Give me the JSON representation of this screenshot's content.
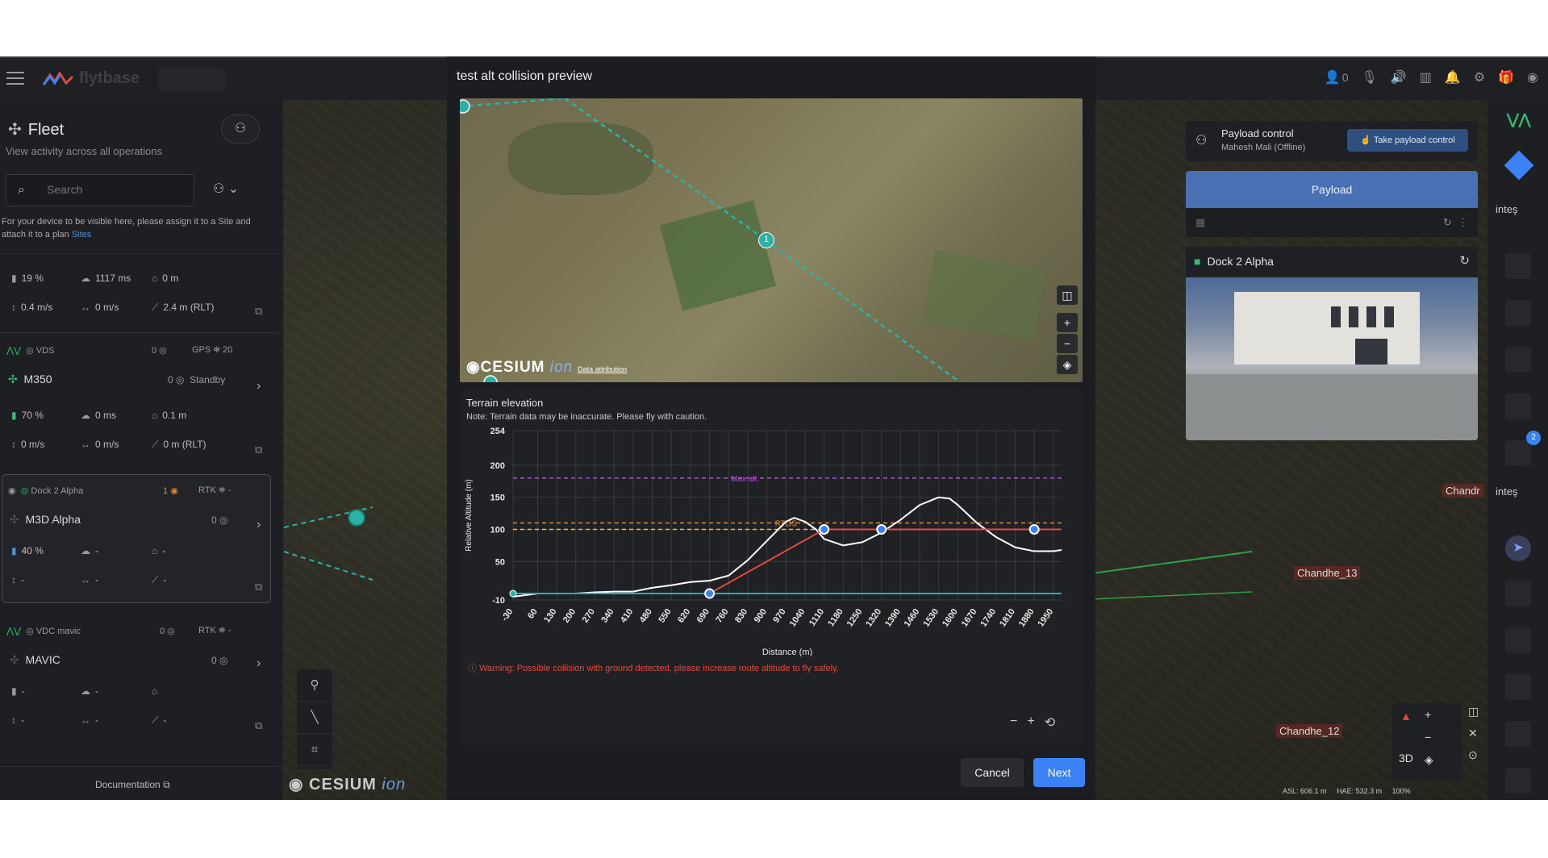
{
  "topbar": {
    "brand": "flytbase",
    "users_count": "0"
  },
  "sidebar": {
    "title": "Fleet",
    "subtitle": "View activity across all operations",
    "search_placeholder": "Search",
    "note": "For your device to be visible here, please assign it to a Site and attach it to a plan",
    "note_link": "Sites",
    "documentation": "Documentation",
    "device0": {
      "battery": "19 %",
      "latency": "1117 ms",
      "home": "0 m",
      "vspeed": "0.4 m/s",
      "hspeed": "0 m/s",
      "alt": "2.4 m (RLT)"
    },
    "device1": {
      "dock": "VDS",
      "count": "0",
      "gps": "GPS",
      "gps_count": "20",
      "name": "M350",
      "drone_count": "0",
      "state": "Standby",
      "battery": "70 %",
      "latency": "0 ms",
      "home": "0.1 m",
      "vspeed": "0 m/s",
      "hspeed": "0 m/s",
      "alt": "0 m (RLT)"
    },
    "device2": {
      "dock": "Dock 2 Alpha",
      "count": "1",
      "rtk": "RTK",
      "rtk_val": "-",
      "name": "M3D Alpha",
      "drone_count": "0",
      "battery": "40 %",
      "dash": "-"
    },
    "device3": {
      "dock": "VDC mavic",
      "count": "0",
      "rtk": "RTK",
      "rtk_val": "-",
      "name": "MAVIC",
      "drone_count": "0",
      "dash": "-"
    }
  },
  "modal": {
    "title": "test alt collision preview",
    "map_cesium": "CESIUM",
    "map_ion": "ion",
    "map_attribution": "Data attribution",
    "waypoint_label": "1",
    "terrain_title": "Terrain elevation",
    "terrain_note": "Note: Terrain data may be inaccurate. Please fly with caution.",
    "warning": "Warning: Possible collision with ground detected, please increase route altitude to fly safely.",
    "cancel_label": "Cancel",
    "next_label": "Next"
  },
  "chart_data": {
    "type": "line",
    "title": "Terrain elevation",
    "xlabel": "Distance  (m)",
    "ylabel": "Relative Altitude  (m)",
    "y_ticks": [
      254,
      200,
      150,
      100,
      50,
      -10
    ],
    "ylim": [
      -10,
      254
    ],
    "x_ticks": [
      -30,
      60,
      130,
      200,
      270,
      340,
      410,
      480,
      550,
      620,
      690,
      760,
      830,
      900,
      970,
      1040,
      1110,
      1180,
      1250,
      1320,
      1390,
      1460,
      1530,
      1600,
      1670,
      1740,
      1810,
      1880,
      1950
    ],
    "xlim": [
      -30,
      1980
    ],
    "grid": true,
    "max_alt_label": "Max alt.",
    "max_alt": 180,
    "rtds_label": "RTDS",
    "rtds_alt": 110,
    "orange_line": 100,
    "series": [
      {
        "color": "#ffffff",
        "x": [
          -30,
          60,
          130,
          200,
          270,
          340,
          410,
          480,
          550,
          620,
          690,
          760,
          830,
          900,
          970,
          1000,
          1040,
          1080,
          1110,
          1180,
          1250,
          1320,
          1390,
          1460,
          1530,
          1570,
          1600,
          1670,
          1740,
          1810,
          1880,
          1950,
          1980
        ],
        "values": [
          -5,
          0,
          0,
          0,
          2,
          3,
          3,
          9,
          13,
          18,
          20,
          28,
          52,
          82,
          112,
          118,
          112,
          100,
          85,
          75,
          80,
          95,
          115,
          138,
          150,
          148,
          138,
          110,
          88,
          72,
          66,
          66,
          68
        ]
      },
      {
        "color": "#e14a3e",
        "x": [
          -30,
          690,
          1110,
          1320,
          1880,
          1980
        ],
        "values": [
          0,
          0,
          100,
          100,
          100,
          100
        ]
      },
      {
        "color": "#2bb3a6",
        "x": [
          -30,
          1980
        ],
        "values": [
          0,
          0
        ]
      }
    ],
    "waypoints": [
      {
        "x": 690,
        "y": 0
      },
      {
        "x": 1110,
        "y": 100
      },
      {
        "x": 1320,
        "y": 100
      },
      {
        "x": 1880,
        "y": 100
      }
    ]
  },
  "right": {
    "payload_ctrl_title": "Payload control",
    "payload_ctrl_user": "Mahesh Mali (Offline)",
    "take_control": "Take payload control",
    "payload_tab": "Payload",
    "dock_card_title": "Dock 2 Alpha",
    "map_label1": "Chandhe_13",
    "map_label2": "Chandhe_12",
    "map_label3": "Chandr",
    "rail_label1": "inteş",
    "rail_label2": "inteş",
    "rail_badge": "2",
    "view_3d": "3D",
    "status_asl": "ASL: 606.1 m",
    "status_hae": "HAE: 532.3 m",
    "status_zoom": "100%"
  }
}
